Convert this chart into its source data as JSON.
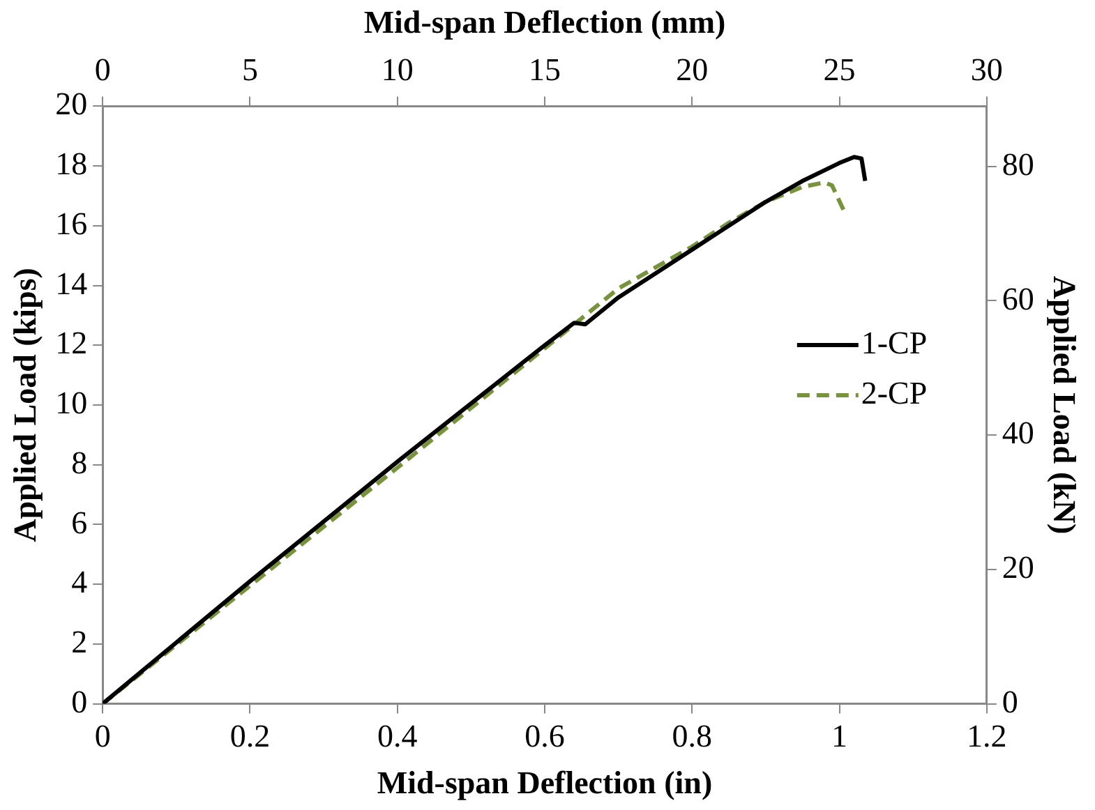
{
  "chart_data": {
    "type": "line",
    "xlabel": "Mid-span Deflection (in)",
    "ylabel": "Applied Load (kips)",
    "y2label": "Applied Load (kN)",
    "x2label": "Mid-span Deflection (mm)",
    "xlim": [
      0,
      1.2
    ],
    "xticks": [
      0,
      0.2,
      0.4,
      0.6,
      0.8,
      1,
      1.2
    ],
    "x2lim": [
      0,
      30
    ],
    "x2ticks": [
      0,
      5,
      10,
      15,
      20,
      25,
      30
    ],
    "ylim": [
      0,
      20
    ],
    "yticks": [
      0,
      2,
      4,
      6,
      8,
      10,
      12,
      14,
      16,
      18,
      20
    ],
    "y2lim": [
      0,
      88.96
    ],
    "y2ticks": [
      0,
      20,
      40,
      60,
      80
    ],
    "grid": false,
    "legend": "right",
    "marker": "none",
    "series": [
      {
        "name": "1-CP",
        "color": "#000000",
        "line_style": "solid",
        "x": [
          0,
          0.2,
          0.4,
          0.6,
          0.64,
          0.655,
          0.7,
          0.75,
          0.8,
          0.85,
          0.9,
          0.95,
          1.0,
          1.02,
          1.03,
          1.035
        ],
        "values": [
          0,
          4.1,
          8.1,
          12.0,
          12.75,
          12.7,
          13.6,
          14.4,
          15.2,
          16.0,
          16.8,
          17.5,
          18.1,
          18.3,
          18.25,
          17.5
        ]
      },
      {
        "name": "2-CP",
        "color": "#77933c",
        "line_style": "dashed",
        "x": [
          0,
          0.2,
          0.4,
          0.6,
          0.65,
          0.7,
          0.75,
          0.8,
          0.85,
          0.9,
          0.95,
          0.98,
          0.99,
          1.008
        ],
        "values": [
          0,
          3.95,
          7.9,
          11.9,
          12.9,
          13.9,
          14.6,
          15.3,
          16.1,
          16.8,
          17.3,
          17.45,
          17.35,
          16.4
        ]
      }
    ]
  }
}
